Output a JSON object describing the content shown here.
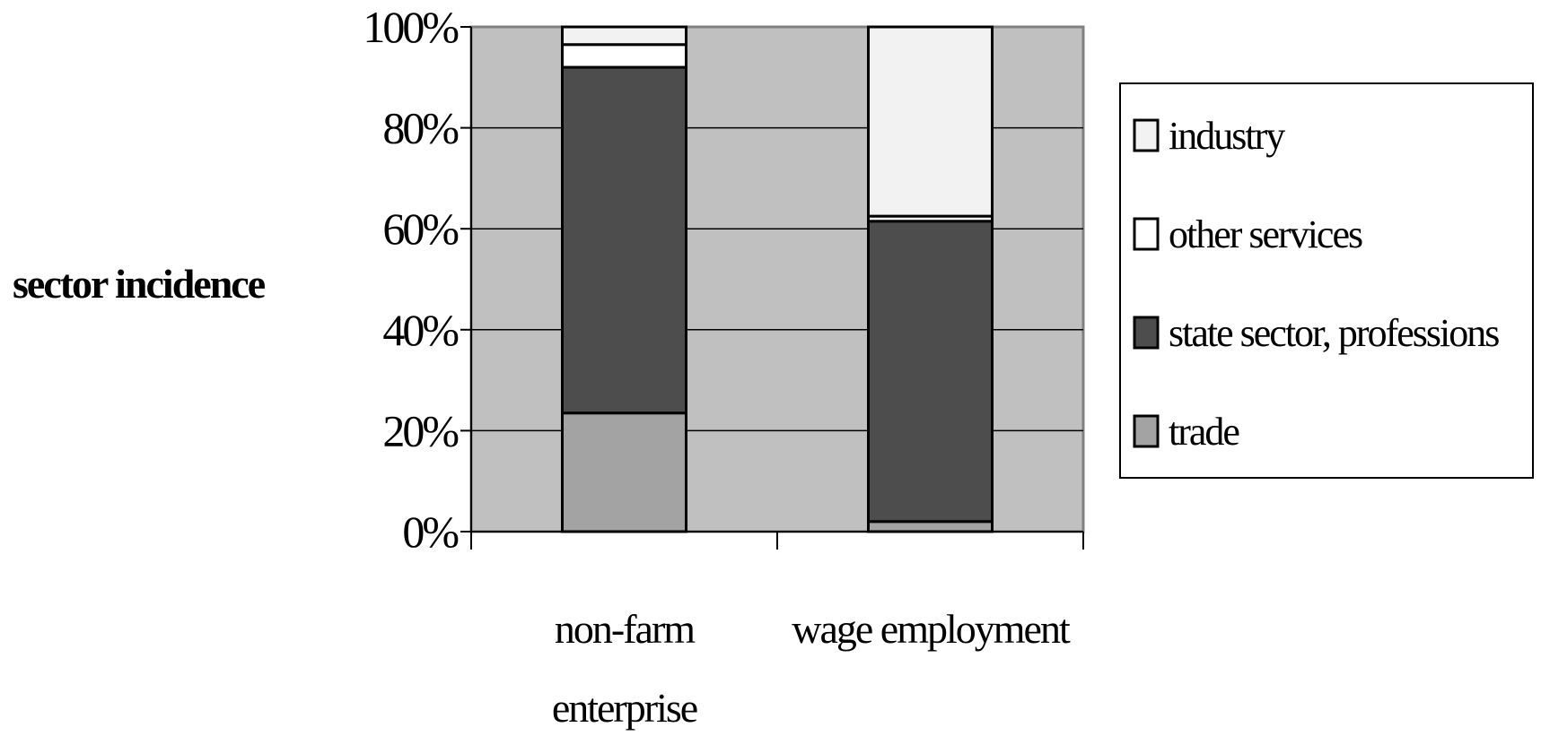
{
  "chart_data": {
    "type": "bar",
    "stacked": true,
    "percent_stacked": true,
    "ylabel": "sector incidence",
    "xlabel": "",
    "ylim": [
      0,
      100
    ],
    "yticks": [
      "0%",
      "20%",
      "40%",
      "60%",
      "80%",
      "100%"
    ],
    "categories": [
      [
        "non-farm",
        "enterprise"
      ],
      [
        "wage employment"
      ]
    ],
    "series": [
      {
        "name": "trade",
        "color": "#a3a3a3",
        "values": [
          23.5,
          2.0
        ]
      },
      {
        "name": "state sector, professions",
        "color": "#4d4d4d",
        "values": [
          68.5,
          59.5
        ]
      },
      {
        "name": "other services",
        "color": "#ffffff",
        "values": [
          4.5,
          1.0
        ]
      },
      {
        "name": "industry",
        "color": "#f2f2f2",
        "values": [
          3.5,
          37.5
        ]
      }
    ],
    "legend_order": [
      "industry",
      "other services",
      "state sector, professions",
      "trade"
    ],
    "legend_position": "right",
    "grid": true,
    "plot_background": "#c0c0c0"
  }
}
